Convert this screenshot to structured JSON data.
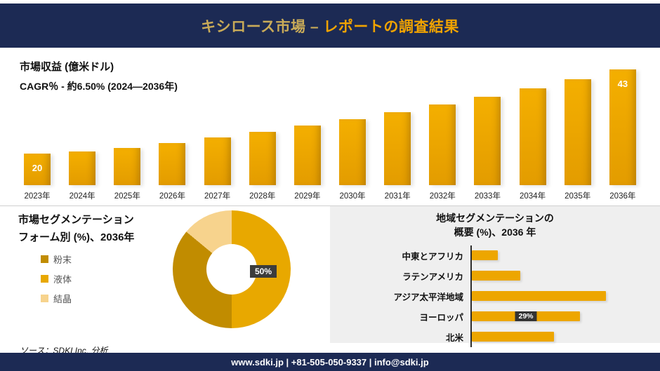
{
  "header": {
    "title_left": "キシロース市場 –",
    "title_right": "レポートの調査結果"
  },
  "source": "ソース：SDKI Inc. 分析",
  "footer": {
    "text": "www.sdki.jp | +81-505-050-9337 | info@sdki.jp"
  },
  "colors": {
    "navy": "#1c2a54",
    "gold": "#eda600",
    "gold_dark": "#c18c00",
    "gold_pale": "#f7d38d",
    "panel_gray": "#efefef",
    "badge_dark": "#3c3c3c"
  },
  "chart_data": [
    {
      "type": "bar",
      "title": "市場収益 (億米ドル)",
      "subtitle": "CAGR％ - 約6.50% (2024―2036年)",
      "categories": [
        "2023年",
        "2024年",
        "2025年",
        "2026年",
        "2027年",
        "2028年",
        "2029年",
        "2030年",
        "2031年",
        "2032年",
        "2033年",
        "2034年",
        "2035年",
        "2036年"
      ],
      "values": [
        20,
        20.5,
        21.5,
        22.9,
        24.4,
        26.0,
        27.7,
        29.5,
        31.4,
        33.4,
        35.6,
        37.9,
        40.4,
        43
      ],
      "value_labels": {
        "2023年": "20",
        "2036年": "43"
      },
      "bar_color": "#eda600",
      "ylim": [
        0,
        45
      ],
      "grid": false
    },
    {
      "type": "pie",
      "title_line1": "市場セグメンテーション",
      "title_line2": "フォーム別 (%)、2036年",
      "legend": [
        {
          "label": "粉末",
          "color": "#c18c00"
        },
        {
          "label": "液体",
          "color": "#e8a800"
        },
        {
          "label": "結晶",
          "color": "#f7d38d"
        }
      ],
      "slices": [
        {
          "label": "液体",
          "value": 50,
          "color": "#e8a800"
        },
        {
          "label": "粉末",
          "value": 36,
          "color": "#c18c00"
        },
        {
          "label": "結晶",
          "value": 14,
          "color": "#f7d38d"
        }
      ],
      "annotation": "50%"
    },
    {
      "type": "bar",
      "orientation": "horizontal",
      "title_line1": "地域セグメンテーションの",
      "title_line2": "概要 (%)、2036 年",
      "categories": [
        "中東とアフリカ",
        "ラテンアメリカ",
        "アジア太平洋地域",
        "ヨーロッパ",
        "北米"
      ],
      "values": [
        7,
        13,
        36,
        29,
        22
      ],
      "value_labels": {
        "ヨーロッパ": "29%"
      },
      "bar_color": "#eda600"
    }
  ]
}
